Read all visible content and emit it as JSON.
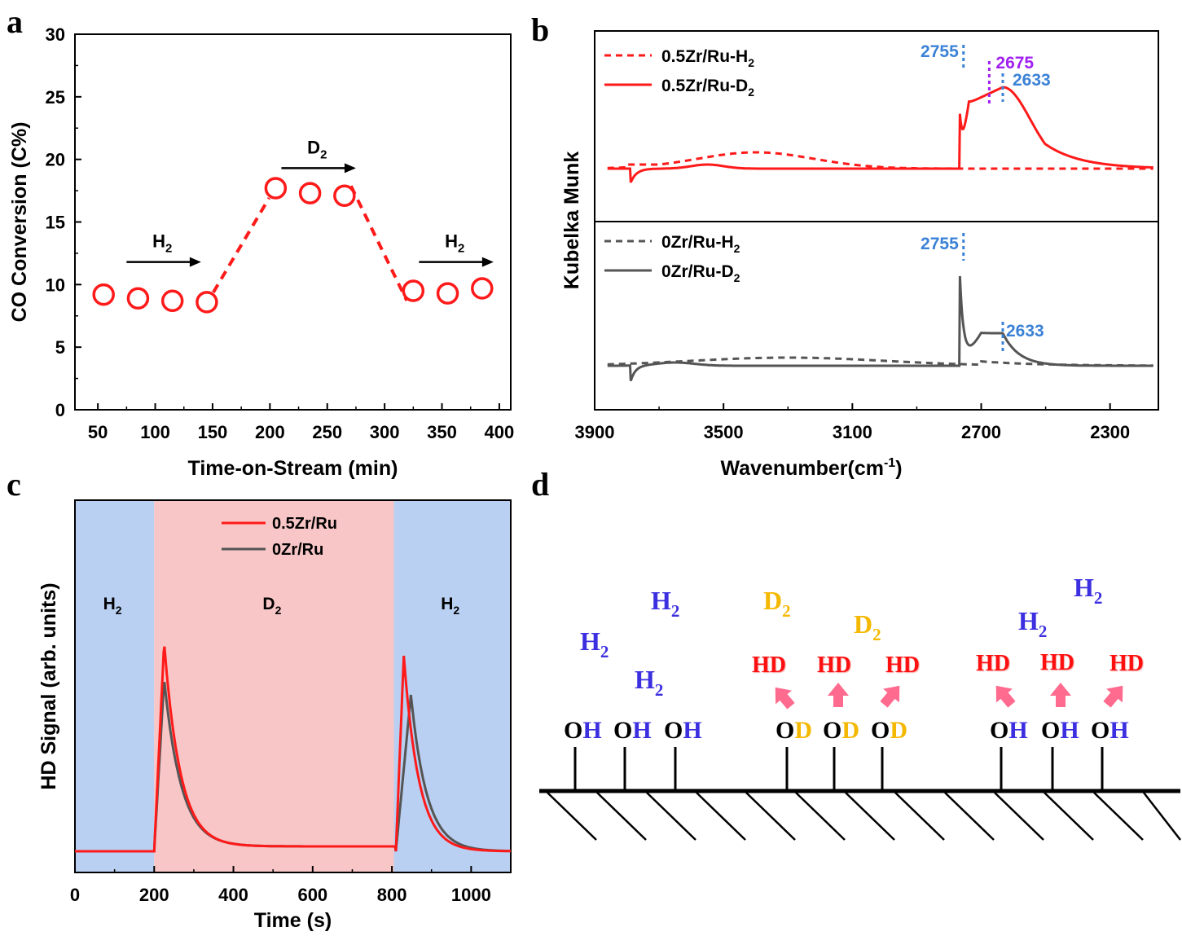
{
  "panel_letters": {
    "a": "a",
    "b": "b",
    "c": "c",
    "d": "d"
  },
  "chart_data": [
    {
      "panel": "a",
      "type": "scatter",
      "xlabel": "Time-on-Stream (min)",
      "ylabel": "CO Conversion (C%)",
      "xlim": [
        30,
        410
      ],
      "ylim": [
        0,
        30
      ],
      "xticks": [
        50,
        100,
        150,
        200,
        250,
        300,
        350,
        400
      ],
      "yticks": [
        0,
        5,
        10,
        15,
        20,
        25,
        30
      ],
      "color": "#ff1a1a",
      "series": [
        {
          "x": [
            55,
            85,
            115,
            145,
            205,
            235,
            265,
            325,
            355,
            385
          ],
          "values": [
            9.2,
            8.9,
            8.7,
            8.6,
            17.7,
            17.3,
            17.1,
            9.5,
            9.3,
            9.7
          ]
        }
      ],
      "dashed_connectors": [
        [
          145,
          8.6,
          205,
          17.7
        ],
        [
          265,
          17.1,
          325,
          9.5
        ]
      ],
      "annotations": [
        {
          "label": "H",
          "sub": "2",
          "x1": 75,
          "x2": 140,
          "y": 11.8
        },
        {
          "label": "D",
          "sub": "2",
          "x1": 210,
          "x2": 275,
          "y": 19.3
        },
        {
          "label": "H",
          "sub": "2",
          "x1": 330,
          "x2": 395,
          "y": 11.8
        }
      ]
    },
    {
      "panel": "b",
      "type": "line",
      "xlabel": "Wavenumber(cm",
      "xlabel_sup": "-1",
      "xlabel_tail": ")",
      "ylabel": "Kubelka Munk",
      "xlim": [
        3900,
        2150
      ],
      "xticks": [
        3900,
        3500,
        3100,
        2700,
        2300
      ],
      "top": {
        "legend": [
          {
            "name": "0.5Zr/Ru-H",
            "sub": "2",
            "style": "dashed",
            "color": "#ff1a1a"
          },
          {
            "name": "0.5Zr/Ru-D",
            "sub": "2",
            "style": "solid",
            "color": "#ff1a1a"
          }
        ],
        "peaks": [
          {
            "label": "2755",
            "x": 2755,
            "color": "#3b82d6"
          },
          {
            "label": "2675",
            "x": 2675,
            "color": "#a020f0"
          },
          {
            "label": "2633",
            "x": 2633,
            "color": "#3b82d6"
          }
        ]
      },
      "bottom": {
        "legend": [
          {
            "name": "0Zr/Ru-H",
            "sub": "2",
            "style": "dashed",
            "color": "#555555"
          },
          {
            "name": "0Zr/Ru-D",
            "sub": "2",
            "style": "solid",
            "color": "#555555"
          }
        ],
        "peaks": [
          {
            "label": "2755",
            "x": 2755,
            "color": "#3b82d6"
          },
          {
            "label": "2633",
            "x": 2633,
            "color": "#3b82d6"
          }
        ]
      }
    },
    {
      "panel": "c",
      "type": "line",
      "xlabel": "Time (s)",
      "ylabel": "HD Signal (arb. units)",
      "xlim": [
        0,
        1100
      ],
      "xticks": [
        0,
        200,
        400,
        600,
        800,
        1000
      ],
      "regions": [
        {
          "label": "H",
          "sub": "2",
          "from": 0,
          "to": 200,
          "color": "#b9d0f2"
        },
        {
          "label": "D",
          "sub": "2",
          "from": 200,
          "to": 805,
          "color": "#f8c6c6"
        },
        {
          "label": "H",
          "sub": "2",
          "from": 805,
          "to": 1100,
          "color": "#b9d0f2"
        }
      ],
      "series": [
        {
          "name": "0.5Zr/Ru",
          "color": "#ff1a1a"
        },
        {
          "name": "0Zr/Ru",
          "color": "#555555"
        }
      ]
    }
  ],
  "panel_d": {
    "h2": "H",
    "d2": "D",
    "sub": "2",
    "hd": "HD",
    "o": "O",
    "h": "H",
    "d": "D"
  }
}
